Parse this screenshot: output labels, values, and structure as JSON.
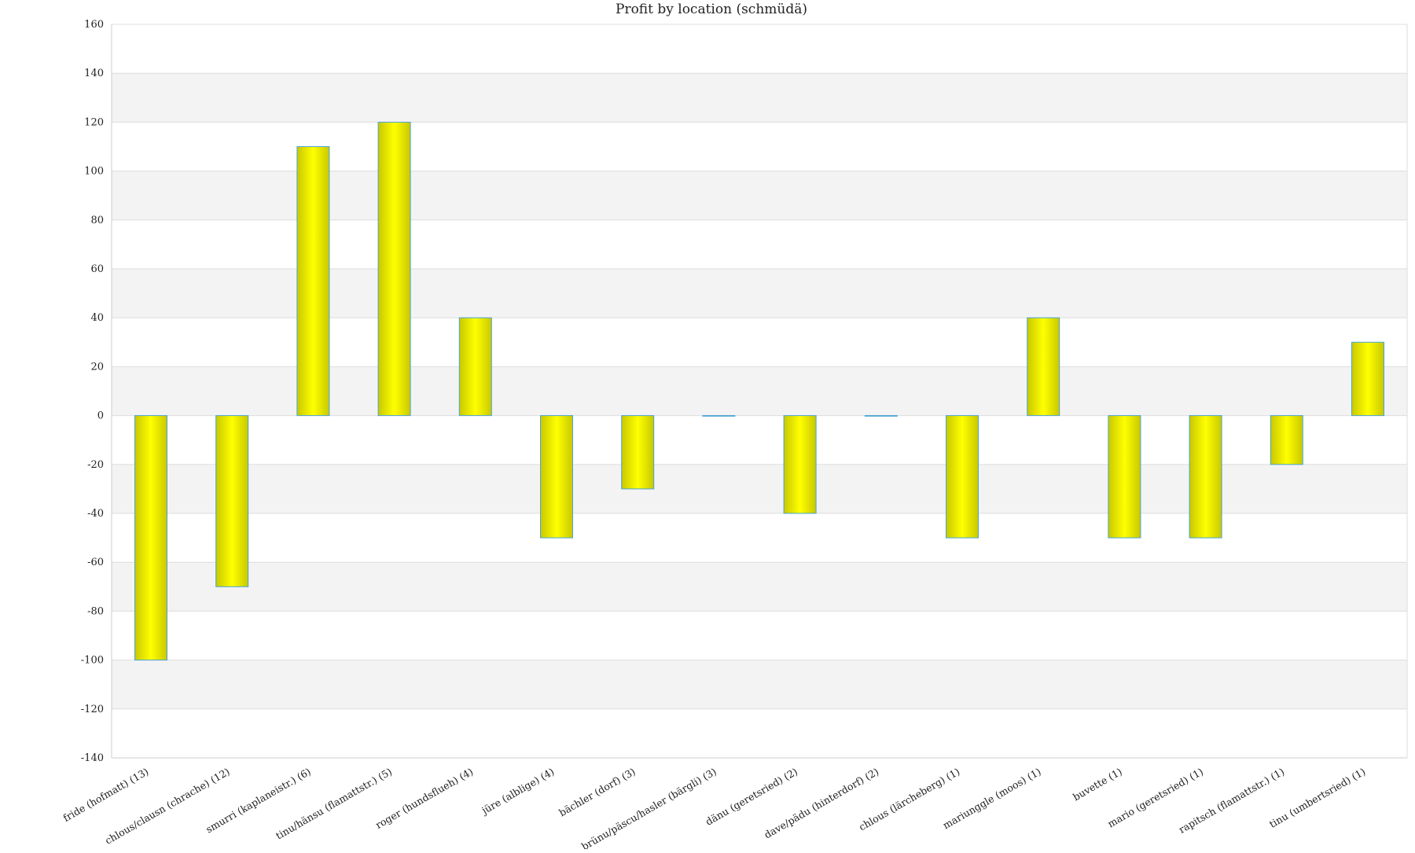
{
  "chart_data": {
    "type": "bar",
    "title": "Profit by location  (schmüdä)",
    "xlabel": "",
    "ylabel": "",
    "ylim": [
      -140,
      160
    ],
    "yticks": [
      160,
      140,
      120,
      100,
      80,
      60,
      40,
      20,
      0,
      -20,
      -40,
      -60,
      -80,
      -100,
      -120,
      -140
    ],
    "grid": true,
    "legend": "none",
    "categories": [
      "fride (hofmatt) (13)",
      "chlous/clausn (chrache) (12)",
      "smurri (kaplaneistr.) (6)",
      "tinu/hänsu (flamattstr.) (5)",
      "roger (hundsflueh) (4)",
      "jüre (albligе) (4)",
      "bächler (dorf) (3)",
      "brünu/päscu/hasler (bärgli) (3)",
      "dänu (geretsried) (2)",
      "dave/pädu (hinterdorf) (2)",
      "chlous (lärcheberg) (1)",
      "mariunggle (moos) (1)",
      "buvette (1)",
      "mario (geretsried) (1)",
      "rapitsch (flamattstr.) (1)",
      "tinu (umbertsried) (1)"
    ],
    "values": [
      -100,
      -70,
      110,
      120,
      40,
      -50,
      -30,
      0,
      -40,
      0,
      -50,
      40,
      -50,
      -50,
      -20,
      30
    ],
    "colors": {
      "bar_fill_edge": "#c8c800",
      "bar_fill_center": "#ffff00",
      "bar_stroke": "#4aa3d6",
      "band": "#f3f3f3",
      "gridline": "#dddddd"
    }
  }
}
